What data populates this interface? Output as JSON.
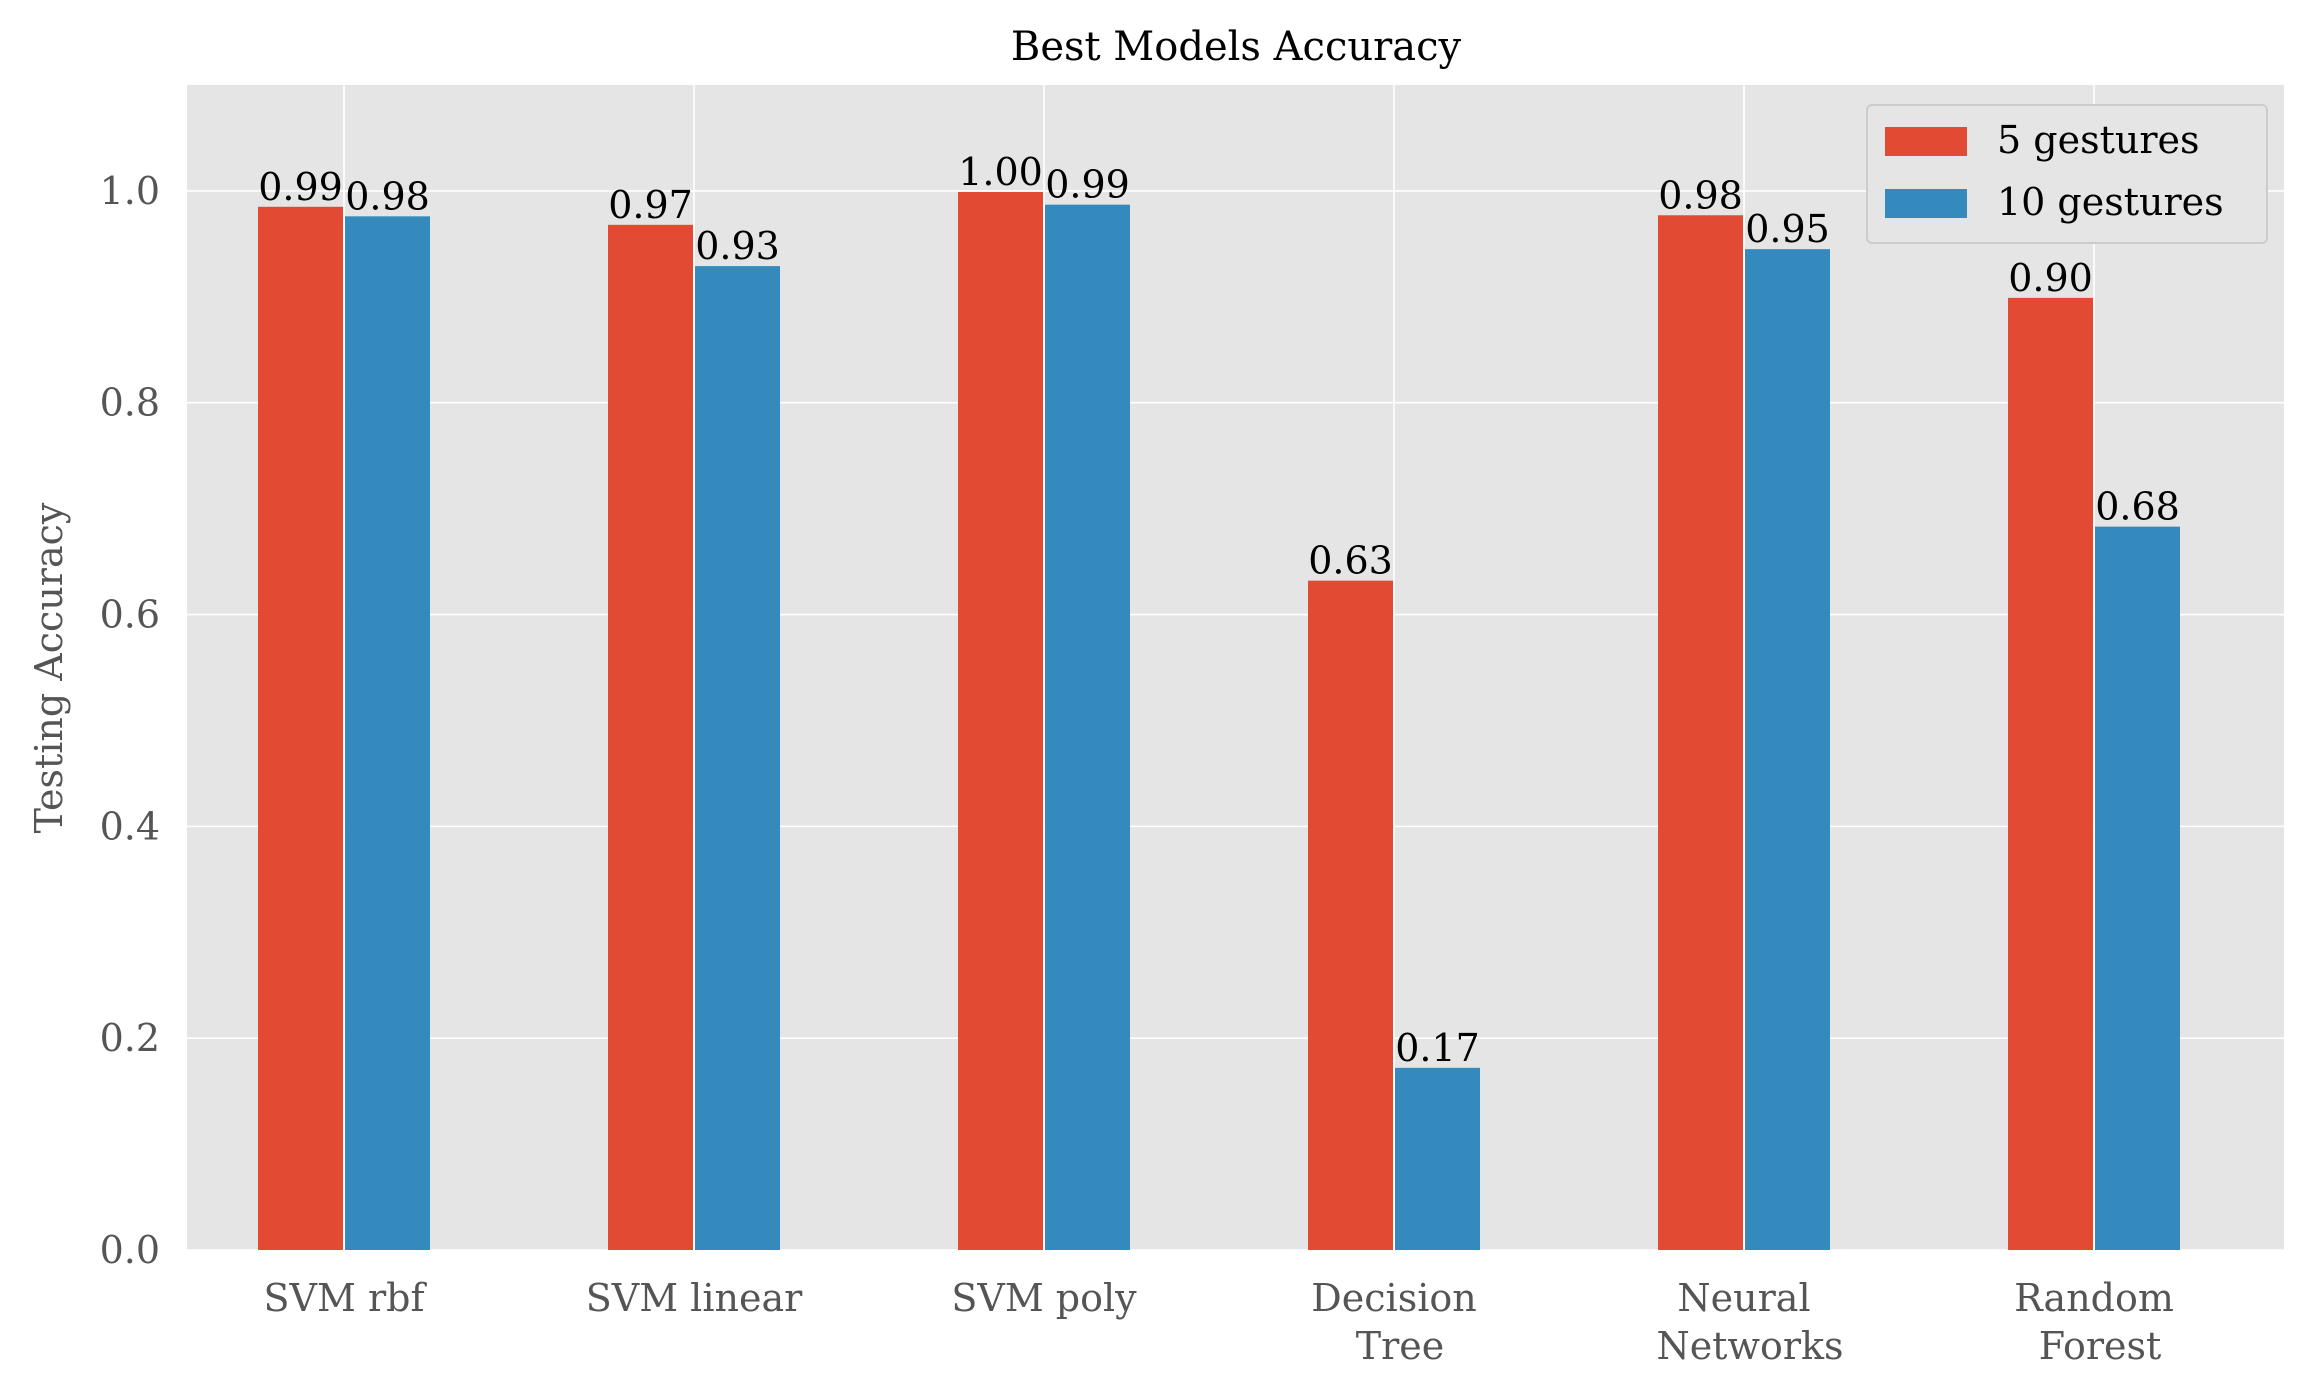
{
  "chart_data": {
    "type": "bar",
    "title": "Best Models Accuracy",
    "xlabel": "",
    "ylabel": "Testing Accuracy",
    "ylim": [
      0,
      1.1
    ],
    "yticks": [
      "0.0",
      "0.2",
      "0.4",
      "0.6",
      "0.8",
      "1.0"
    ],
    "categories": [
      [
        "SVM rbf"
      ],
      [
        "SVM linear"
      ],
      [
        "SVM poly"
      ],
      [
        "Decision",
        "Tree"
      ],
      [
        "Neural",
        "Networks"
      ],
      [
        "Random",
        "Forest"
      ]
    ],
    "series": [
      {
        "name": "5 gestures",
        "color": "#E24A33",
        "values": [
          0.985,
          0.968,
          0.999,
          0.632,
          0.977,
          0.899
        ],
        "labels": [
          "0.99",
          "0.97",
          "1.00",
          "0.63",
          "0.98",
          "0.90"
        ]
      },
      {
        "name": "10 gestures",
        "color": "#348ABD",
        "values": [
          0.976,
          0.929,
          0.987,
          0.172,
          0.945,
          0.683
        ],
        "labels": [
          "0.98",
          "0.93",
          "0.99",
          "0.17",
          "0.95",
          "0.68"
        ]
      }
    ],
    "grid": true,
    "legend_position": "top-right",
    "background_color": "#E5E5E5"
  }
}
